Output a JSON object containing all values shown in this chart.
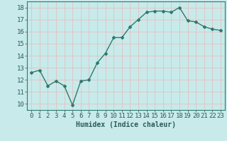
{
  "x": [
    0,
    1,
    2,
    3,
    4,
    5,
    6,
    7,
    8,
    9,
    10,
    11,
    12,
    13,
    14,
    15,
    16,
    17,
    18,
    19,
    20,
    21,
    22,
    23
  ],
  "y": [
    12.6,
    12.8,
    11.5,
    11.9,
    11.5,
    9.9,
    11.9,
    12.0,
    13.4,
    14.2,
    15.5,
    15.5,
    16.4,
    17.0,
    17.6,
    17.7,
    17.7,
    17.6,
    18.0,
    16.9,
    16.8,
    16.4,
    16.2,
    16.1
  ],
  "xlabel": "Humidex (Indice chaleur)",
  "ylim": [
    9.5,
    18.5
  ],
  "xlim": [
    -0.5,
    23.5
  ],
  "yticks": [
    10,
    11,
    12,
    13,
    14,
    15,
    16,
    17,
    18
  ],
  "xticks": [
    0,
    1,
    2,
    3,
    4,
    5,
    6,
    7,
    8,
    9,
    10,
    11,
    12,
    13,
    14,
    15,
    16,
    17,
    18,
    19,
    20,
    21,
    22,
    23
  ],
  "line_color": "#2d7a6e",
  "marker": "D",
  "marker_size": 2.0,
  "bg_color": "#c8eaea",
  "grid_color": "#e8b8b8",
  "line_width": 1.0,
  "font_color": "#2d5a5a",
  "xlabel_fontsize": 7,
  "tick_fontsize": 6.5
}
